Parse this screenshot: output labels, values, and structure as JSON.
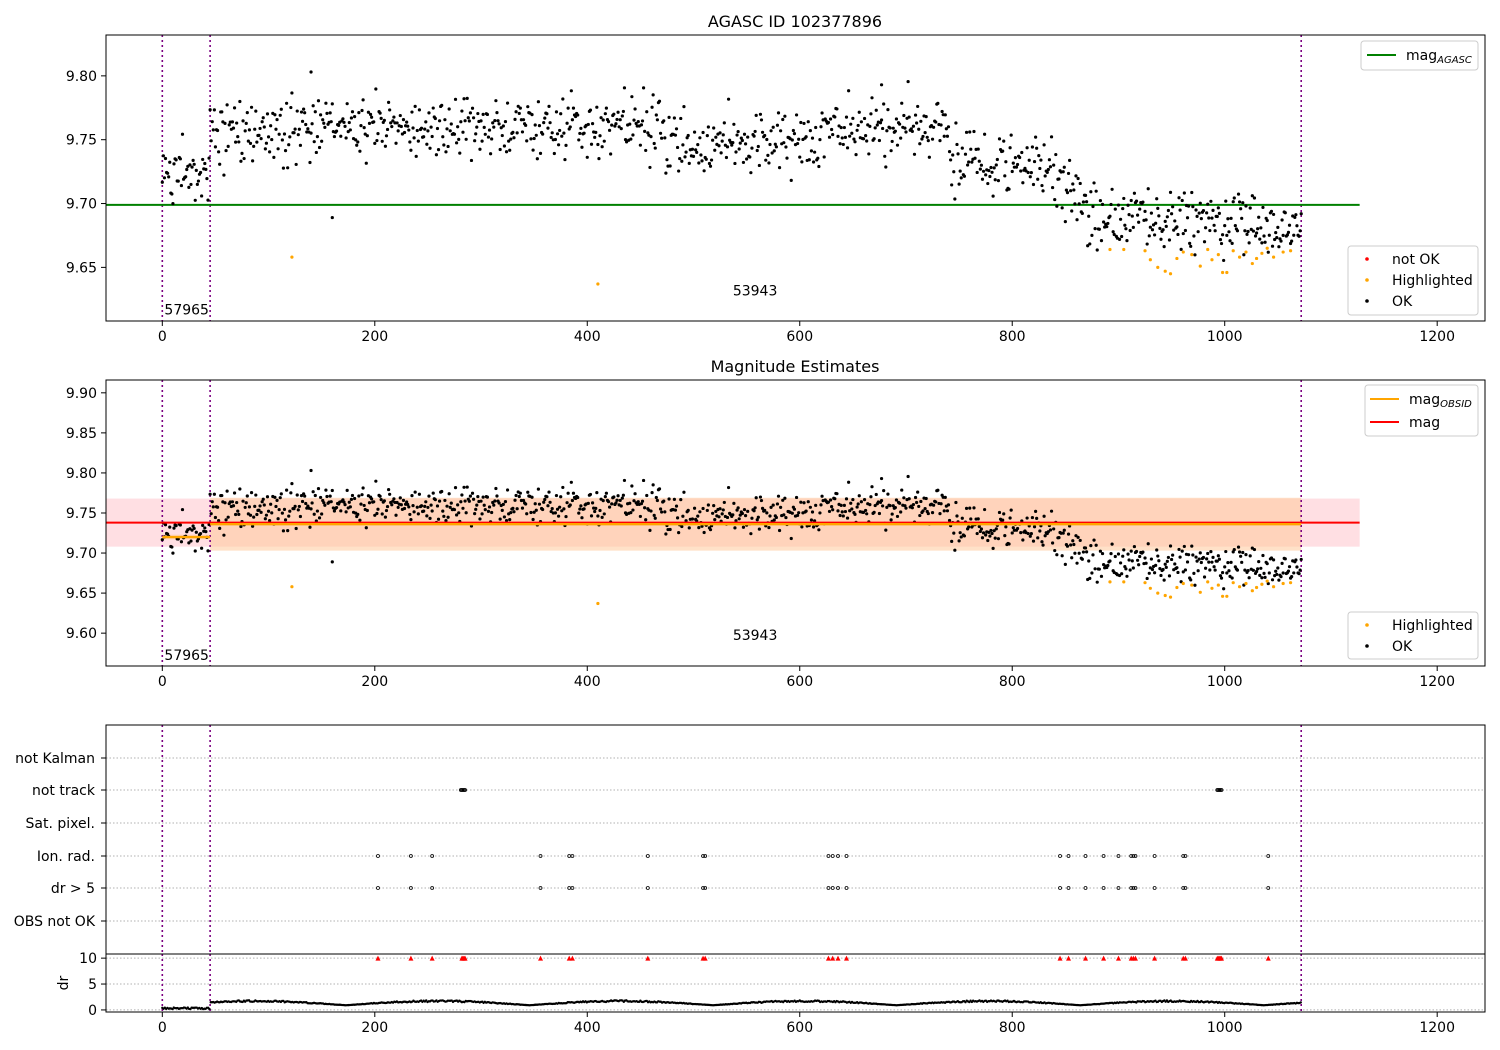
{
  "chart_data": [
    {
      "type": "scatter",
      "title": "AGASC ID 102377896",
      "xlabel": "",
      "ylabel": "",
      "xlim": [
        -53,
        1245
      ],
      "ylim": [
        9.608,
        9.832
      ],
      "xticks": [
        0,
        200,
        400,
        600,
        800,
        1000,
        1200
      ],
      "yticks": [
        9.65,
        9.7,
        9.75,
        9.8
      ],
      "vlines": [
        0,
        45,
        1072
      ],
      "obsid_labels": [
        {
          "text": "57965",
          "x": 2,
          "y": 9.617
        },
        {
          "text": "53943",
          "x": 537,
          "y": 9.632
        }
      ],
      "hline": {
        "name": "mag",
        "subscript": "AGASC",
        "y": 9.699,
        "x0": -53,
        "x1": 1127,
        "color": "#008000"
      },
      "highlighted_points": [
        [
          122,
          9.658
        ],
        [
          410,
          9.637
        ],
        [
          892,
          9.664
        ],
        [
          905,
          9.664
        ],
        [
          925,
          9.663
        ],
        [
          930,
          9.656
        ],
        [
          937,
          9.65
        ],
        [
          944,
          9.647
        ],
        [
          949,
          9.645
        ],
        [
          955,
          9.657
        ],
        [
          961,
          9.662
        ],
        [
          969,
          9.66
        ],
        [
          977,
          9.651
        ],
        [
          984,
          9.664
        ],
        [
          988,
          9.656
        ],
        [
          994,
          9.66
        ],
        [
          998,
          9.646
        ],
        [
          1002,
          9.646
        ],
        [
          1008,
          9.663
        ],
        [
          1014,
          9.658
        ],
        [
          1020,
          9.662
        ],
        [
          1026,
          9.653
        ],
        [
          1030,
          9.657
        ],
        [
          1035,
          9.661
        ],
        [
          1040,
          9.665
        ],
        [
          1046,
          9.658
        ],
        [
          1055,
          9.662
        ],
        [
          1062,
          9.663
        ]
      ],
      "legends": [
        {
          "position": "top-right",
          "entries": [
            {
              "label": "mag",
              "subscript": "AGASC",
              "color": "#008000",
              "kind": "line"
            }
          ]
        },
        {
          "position": "lower-right",
          "entries": [
            {
              "label": "not OK",
              "color": "#ff0000",
              "kind": "marker"
            },
            {
              "label": "Highlighted",
              "color": "#ffa500",
              "kind": "marker"
            },
            {
              "label": "OK",
              "color": "#000000",
              "kind": "marker"
            }
          ]
        }
      ]
    },
    {
      "type": "scatter",
      "title": "Magnitude Estimates",
      "xlabel": "",
      "ylabel": "",
      "xlim": [
        -53,
        1245
      ],
      "ylim": [
        9.559,
        9.916
      ],
      "xticks": [
        0,
        200,
        400,
        600,
        800,
        1000,
        1200
      ],
      "yticks": [
        9.6,
        9.65,
        9.7,
        9.75,
        9.8,
        9.85,
        9.9
      ],
      "vlines": [
        0,
        45,
        1072
      ],
      "obsid_labels": [
        {
          "text": "57965",
          "x": 2,
          "y": 9.573
        },
        {
          "text": "53943",
          "x": 537,
          "y": 9.598
        }
      ],
      "mag": {
        "y": 9.738,
        "band": [
          9.708,
          9.768
        ],
        "x0": -53,
        "x1": 1127,
        "color": "#ff0000"
      },
      "mag_obsid": [
        {
          "x0": 0,
          "x1": 45,
          "y": 9.72,
          "band": [
            9.717,
            9.723
          ]
        },
        {
          "x0": 45,
          "x1": 1072,
          "y": 9.736,
          "band": [
            9.703,
            9.769
          ]
        }
      ],
      "legends": [
        {
          "position": "top-right",
          "entries": [
            {
              "label": "mag",
              "subscript": "OBSID",
              "color": "#ffa500",
              "kind": "line"
            },
            {
              "label": "mag",
              "subscript": "",
              "color": "#ff0000",
              "kind": "line"
            }
          ]
        },
        {
          "position": "lower-right",
          "entries": [
            {
              "label": "Highlighted",
              "color": "#ffa500",
              "kind": "marker"
            },
            {
              "label": "OK",
              "color": "#000000",
              "kind": "marker"
            }
          ]
        }
      ]
    },
    {
      "type": "scatter",
      "title": "",
      "xlabel": "",
      "ylabel": "",
      "xlim": [
        -53,
        1245
      ],
      "categories": [
        "not Kalman",
        "not track",
        "Sat. pixel.",
        "Ion. rad.",
        "dr > 5",
        "OBS not OK"
      ],
      "flag_points": {
        "not Kalman": [],
        "not track": [
          281,
          282,
          283,
          284,
          285,
          993,
          994,
          995,
          996,
          997
        ],
        "Sat. pixel.": [],
        "Ion. rad.": [
          203,
          234,
          254,
          356,
          383,
          386,
          457,
          509,
          511,
          627,
          631,
          636,
          644,
          845,
          853,
          869,
          886,
          900,
          912,
          914,
          916,
          934,
          961,
          963,
          1041
        ],
        "dr > 5": [
          203,
          234,
          254,
          356,
          383,
          386,
          457,
          509,
          511,
          627,
          631,
          636,
          644,
          845,
          853,
          869,
          886,
          900,
          912,
          914,
          916,
          934,
          961,
          963,
          1041
        ],
        "OBS not OK": []
      },
      "vlines": [
        0,
        45,
        1072
      ]
    },
    {
      "type": "scatter",
      "title": "",
      "xlabel": "",
      "ylabel": "dr",
      "xlim": [
        -53,
        1245
      ],
      "ylim": [
        -0.4,
        10.8
      ],
      "xticks": [
        0,
        200,
        400,
        600,
        800,
        1000,
        1200
      ],
      "yticks": [
        0,
        5,
        10
      ],
      "clipped_at": 10,
      "clipped_x": [
        203,
        234,
        254,
        282,
        283,
        284,
        285,
        356,
        383,
        386,
        457,
        509,
        511,
        627,
        631,
        636,
        644,
        845,
        853,
        869,
        886,
        900,
        912,
        914,
        916,
        934,
        961,
        963,
        993,
        994,
        995,
        996,
        997,
        1041
      ],
      "vlines": [
        0,
        45,
        1072
      ]
    }
  ]
}
